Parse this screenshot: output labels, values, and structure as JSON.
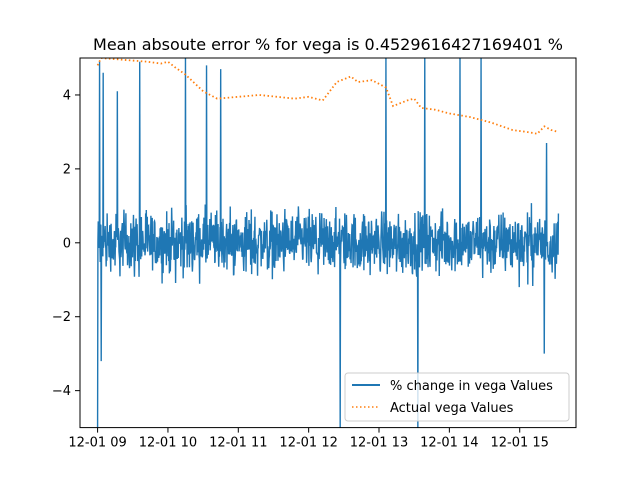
{
  "chart_data": {
    "type": "line",
    "title": "Mean absoute error % for vega is 0.4529616427169401 %",
    "xlabel": "",
    "ylabel": "",
    "x_ticks": [
      "12-01 09",
      "12-01 10",
      "12-01 11",
      "12-01 12",
      "12-01 13",
      "12-01 14",
      "12-01 15"
    ],
    "x_tick_hours": [
      9,
      10,
      11,
      12,
      13,
      14,
      15
    ],
    "xlim_hours": [
      8.75,
      15.8
    ],
    "y_ticks": [
      -4,
      -2,
      0,
      2,
      4
    ],
    "ylim": [
      -5,
      5
    ],
    "grid": false,
    "legend_position": "lower-right",
    "colors": {
      "change": "#1f77b4",
      "actual": "#ff7f0e"
    },
    "series": [
      {
        "name": "% change in vega Values",
        "style": "solid",
        "note_shape": "dense noise around 0 with occasional spikes",
        "noise_amplitude": 1.2,
        "x_start_hour": 9.0,
        "x_end_hour": 15.55,
        "spikes": [
          {
            "hour": 9.0,
            "value": -5.0
          },
          {
            "hour": 9.03,
            "value": 4.9
          },
          {
            "hour": 9.05,
            "value": -3.2
          },
          {
            "hour": 9.08,
            "value": 4.6
          },
          {
            "hour": 9.28,
            "value": 4.1
          },
          {
            "hour": 9.6,
            "value": 4.9
          },
          {
            "hour": 10.25,
            "value": 5.0
          },
          {
            "hour": 10.55,
            "value": 4.8
          },
          {
            "hour": 10.75,
            "value": 4.7
          },
          {
            "hour": 12.45,
            "value": -5.0
          },
          {
            "hour": 13.1,
            "value": 5.0
          },
          {
            "hour": 13.55,
            "value": -5.0
          },
          {
            "hour": 13.65,
            "value": 5.0
          },
          {
            "hour": 14.15,
            "value": 5.0
          },
          {
            "hour": 14.45,
            "value": 5.0
          },
          {
            "hour": 15.35,
            "value": -3.0
          },
          {
            "hour": 15.38,
            "value": 2.7
          }
        ]
      },
      {
        "name": "Actual vega Values",
        "style": "dotted",
        "x": [
          9.0,
          9.05,
          9.7,
          9.9,
          10.0,
          10.1,
          10.25,
          10.5,
          10.7,
          11.0,
          11.3,
          11.55,
          11.8,
          12.0,
          12.2,
          12.4,
          12.6,
          12.7,
          12.9,
          13.1,
          13.2,
          13.4,
          13.5,
          13.6,
          13.8,
          14.0,
          14.3,
          14.6,
          14.9,
          15.1,
          15.25,
          15.35,
          15.45,
          15.55
        ],
        "values": [
          4.8,
          5.0,
          4.9,
          4.85,
          4.9,
          4.75,
          4.55,
          4.1,
          3.9,
          3.95,
          4.0,
          3.95,
          3.9,
          3.95,
          3.85,
          4.35,
          4.5,
          4.35,
          4.4,
          4.2,
          3.7,
          3.85,
          3.9,
          3.65,
          3.6,
          3.5,
          3.4,
          3.25,
          3.05,
          3.0,
          2.95,
          3.15,
          3.05,
          3.0
        ]
      }
    ]
  }
}
